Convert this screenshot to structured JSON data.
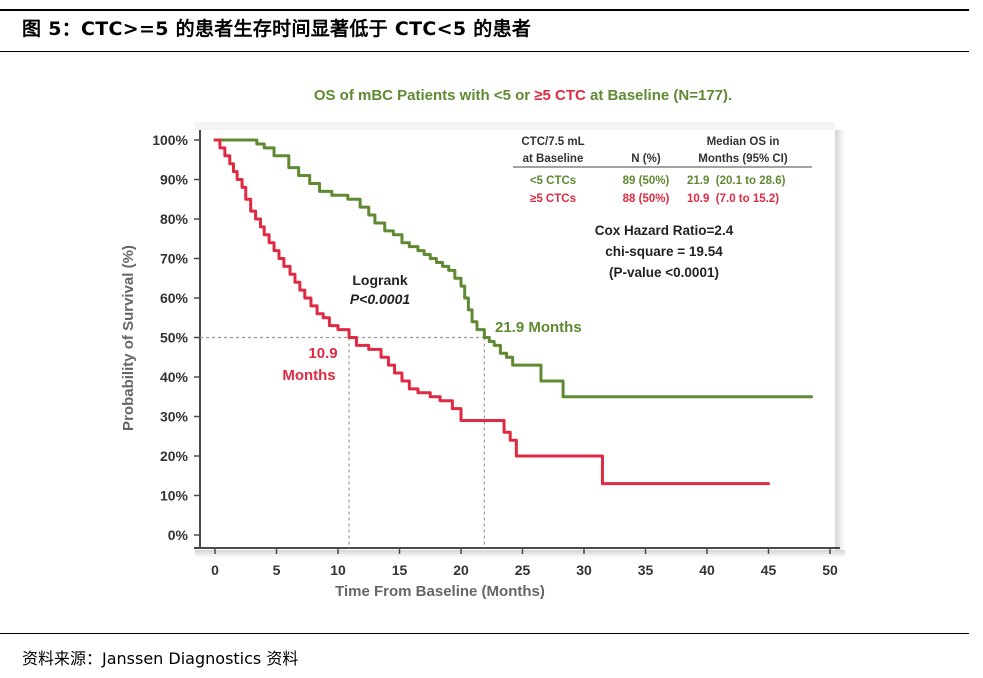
{
  "header": {
    "title": "图 5：CTC>=5 的患者生存时间显著低于 CTC<5 的患者"
  },
  "footer": {
    "source": "资料来源：Janssen Diagnostics 资料"
  },
  "colors": {
    "green": "#5f8a32",
    "red": "#de2a42",
    "axis": "#4a4a4a",
    "grid": "#9a9a9a"
  },
  "chart_data": {
    "type": "line",
    "title": "OS of mBC Patients with <5 or ≥5 CTC at Baseline (N=177).",
    "xlabel": "Time From Baseline (Months)",
    "ylabel": "Probability of Survival (%)",
    "xlim": [
      0,
      50
    ],
    "ylim": [
      0,
      100
    ],
    "x_ticks": [
      0,
      5,
      10,
      15,
      20,
      25,
      30,
      35,
      40,
      45,
      50
    ],
    "y_ticks": [
      0,
      10,
      20,
      30,
      40,
      50,
      60,
      70,
      80,
      90,
      100
    ],
    "y_tick_labels": [
      "0%",
      "10%",
      "20%",
      "30%",
      "40%",
      "50%",
      "60%",
      "70%",
      "80%",
      "90%",
      "100%"
    ],
    "series": [
      {
        "name": "<5 CTCs",
        "color": "#5f8a32",
        "points": [
          [
            0,
            100
          ],
          [
            3.4,
            99
          ],
          [
            4,
            98
          ],
          [
            4.8,
            96
          ],
          [
            6,
            93
          ],
          [
            6.8,
            91
          ],
          [
            7.7,
            89
          ],
          [
            8.5,
            87
          ],
          [
            9.5,
            86
          ],
          [
            10.8,
            85
          ],
          [
            11.8,
            83
          ],
          [
            12.5,
            81
          ],
          [
            13,
            79
          ],
          [
            13.8,
            77
          ],
          [
            14.5,
            76
          ],
          [
            15.2,
            74
          ],
          [
            15.8,
            73
          ],
          [
            16.5,
            72
          ],
          [
            17,
            71
          ],
          [
            17.5,
            70
          ],
          [
            18,
            69
          ],
          [
            18.5,
            68
          ],
          [
            19,
            67
          ],
          [
            19.5,
            65
          ],
          [
            20,
            63
          ],
          [
            20.3,
            60
          ],
          [
            20.6,
            57
          ],
          [
            20.9,
            54
          ],
          [
            21.3,
            52
          ],
          [
            21.9,
            50
          ],
          [
            22.3,
            49
          ],
          [
            22.7,
            48
          ],
          [
            23.2,
            46
          ],
          [
            23.7,
            45
          ],
          [
            24.2,
            43
          ],
          [
            26.5,
            43
          ],
          [
            26.5,
            39
          ],
          [
            28.3,
            39
          ],
          [
            28.3,
            35
          ],
          [
            48.5,
            35
          ]
        ]
      },
      {
        "name": "≥5 CTCs",
        "color": "#de2a42",
        "points": [
          [
            0,
            100
          ],
          [
            0.4,
            98
          ],
          [
            0.8,
            96
          ],
          [
            1.2,
            94
          ],
          [
            1.5,
            92
          ],
          [
            1.8,
            90
          ],
          [
            2.2,
            88
          ],
          [
            2.5,
            85
          ],
          [
            2.9,
            82
          ],
          [
            3.3,
            80
          ],
          [
            3.7,
            78
          ],
          [
            4,
            76
          ],
          [
            4.4,
            74
          ],
          [
            4.8,
            72
          ],
          [
            5.2,
            70
          ],
          [
            5.6,
            68
          ],
          [
            6.1,
            66
          ],
          [
            6.5,
            64
          ],
          [
            6.9,
            62
          ],
          [
            7.3,
            60
          ],
          [
            7.8,
            58
          ],
          [
            8.3,
            56
          ],
          [
            8.8,
            55
          ],
          [
            9.3,
            53
          ],
          [
            10,
            52
          ],
          [
            10.9,
            50
          ],
          [
            11.5,
            48
          ],
          [
            12.5,
            47
          ],
          [
            13.5,
            45
          ],
          [
            14.1,
            43
          ],
          [
            14.6,
            41
          ],
          [
            15.2,
            39
          ],
          [
            15.8,
            37
          ],
          [
            16.5,
            36
          ],
          [
            17.5,
            35
          ],
          [
            18.3,
            34
          ],
          [
            19.3,
            32
          ],
          [
            20,
            29
          ],
          [
            23,
            29
          ],
          [
            23.5,
            26
          ],
          [
            24,
            24
          ],
          [
            24.5,
            23
          ],
          [
            24.5,
            20
          ],
          [
            31.5,
            20
          ],
          [
            31.5,
            13
          ],
          [
            45,
            13
          ]
        ]
      }
    ],
    "median_lines": [
      {
        "series": "≥5 CTCs",
        "x": 10.9,
        "y": 50
      },
      {
        "series": "<5 CTCs",
        "x": 21.9,
        "y": 50
      }
    ],
    "annotations": {
      "logrank_line1": "Logrank",
      "logrank_line2": "P<0.0001",
      "green_median": "21.9 Months",
      "red_median_line1": "10.9",
      "red_median_line2": "Months"
    },
    "stats_table": {
      "headers": [
        [
          "CTC/7.5 mL",
          "at Baseline"
        ],
        [
          "N (%)"
        ],
        [
          "Median OS in",
          "Months (95% CI)"
        ]
      ],
      "rows": [
        {
          "group": "<5 CTCs",
          "n": "89 (50%)",
          "median": "21.9  (20.1 to 28.6)"
        },
        {
          "group": "≥5 CTCs",
          "n": "88 (50%)",
          "median": "10.9  (7.0 to 15.2)"
        }
      ]
    },
    "hazard": {
      "line1": "Cox Hazard Ratio=2.4",
      "line2": "chi-square = 19.54",
      "line3": "(P-value <0.0001)"
    }
  }
}
